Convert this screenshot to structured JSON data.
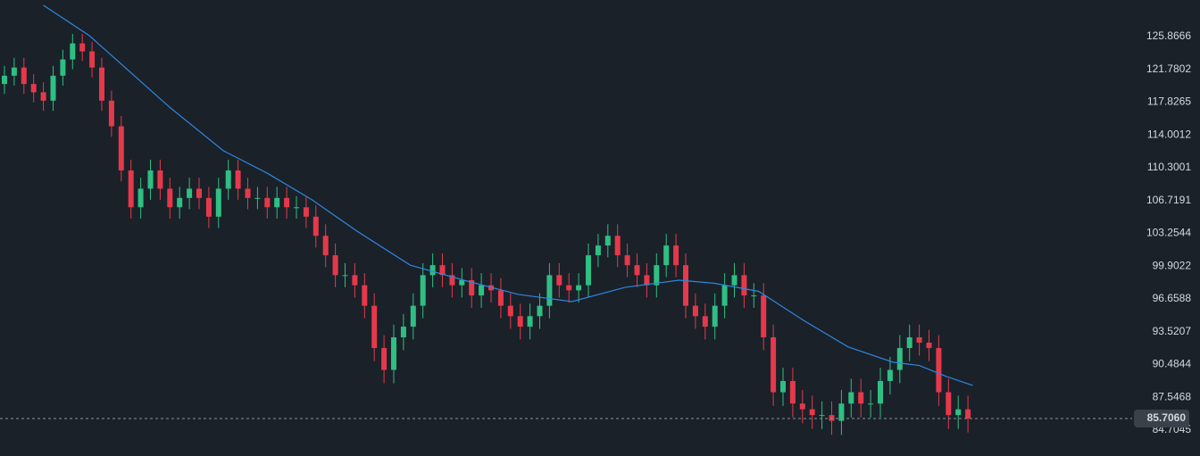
{
  "chart_data": {
    "type": "candlestick",
    "log_scale": true,
    "ylim": [
      82.53,
      130.58
    ],
    "yticks": [
      125.8666,
      121.7802,
      117.8265,
      114.0012,
      110.3001,
      106.7191,
      103.2544,
      99.9022,
      96.6588,
      93.5207,
      90.4844,
      87.5468,
      84.7045
    ],
    "up_color": "#2fbf83",
    "down_color": "#e5394b",
    "open": [
      120,
      121,
      122,
      120,
      119,
      118,
      121,
      123,
      125,
      124,
      122,
      118,
      115,
      110,
      106,
      108,
      110,
      108,
      106,
      107,
      108,
      107,
      105,
      108,
      110,
      108,
      107,
      107,
      106,
      107,
      106,
      106,
      105,
      103,
      101,
      99,
      99,
      98,
      96,
      92,
      90,
      93,
      94,
      96,
      99,
      100,
      99,
      98,
      98.5,
      97,
      98,
      97.5,
      96,
      95,
      94,
      95,
      96,
      99,
      98,
      97.5,
      98,
      101,
      102,
      103,
      101,
      100,
      99,
      98,
      100,
      102,
      100,
      96,
      95,
      94,
      96,
      98,
      99,
      97,
      97,
      93,
      88,
      89,
      87,
      86.5,
      86,
      86,
      85.5,
      87,
      88,
      87,
      87,
      89,
      90,
      92,
      93,
      92.5,
      92,
      88,
      86,
      86.5
    ],
    "high": [
      122.2,
      123.2,
      123.2,
      121.2,
      120.2,
      122.2,
      124.2,
      126.2,
      126.2,
      125.2,
      123.2,
      119.2,
      116.2,
      111.2,
      109.2,
      111.2,
      111.2,
      109.2,
      108.2,
      109.2,
      109.2,
      108.2,
      109.2,
      111.2,
      111.2,
      109.2,
      108.2,
      108.2,
      108.2,
      108.2,
      107.2,
      107.2,
      106.2,
      104.2,
      102.2,
      100.2,
      100.2,
      99.2,
      97.2,
      93.2,
      94.2,
      95.2,
      97.2,
      100.2,
      101.2,
      101.2,
      100.2,
      99.7,
      99.7,
      99.2,
      99.2,
      98.7,
      97.2,
      96.2,
      96.2,
      97.2,
      100.2,
      100.2,
      99.2,
      99.2,
      102.2,
      103.2,
      104.2,
      104.2,
      102.2,
      101.2,
      100.2,
      101.2,
      103.2,
      103.2,
      101.2,
      97.2,
      96.2,
      97.2,
      99.2,
      100.2,
      100.2,
      98.2,
      98.2,
      94.2,
      90.2,
      90.2,
      88.2,
      87.7,
      87.2,
      87.2,
      88.2,
      89.2,
      89.2,
      88.2,
      90.2,
      91.2,
      93.2,
      94.2,
      94.2,
      93.7,
      93.2,
      89.2,
      87.7,
      87.7
    ],
    "low": [
      118.8,
      119.8,
      118.8,
      117.8,
      116.8,
      116.8,
      119.8,
      121.8,
      122.8,
      120.8,
      116.8,
      113.8,
      108.8,
      104.8,
      104.8,
      106.8,
      106.8,
      104.8,
      104.8,
      105.8,
      105.8,
      103.8,
      103.8,
      106.8,
      106.8,
      105.8,
      105.8,
      104.8,
      104.8,
      104.8,
      104.8,
      103.8,
      101.8,
      99.8,
      97.8,
      97.8,
      96.8,
      94.8,
      90.8,
      88.8,
      88.8,
      91.8,
      92.8,
      94.8,
      97.8,
      97.8,
      96.8,
      96.8,
      95.8,
      95.8,
      96.3,
      94.8,
      93.8,
      92.8,
      92.8,
      93.8,
      94.8,
      96.8,
      96.3,
      96.3,
      96.8,
      99.8,
      100.8,
      99.8,
      98.8,
      97.8,
      96.8,
      96.8,
      98.8,
      98.8,
      94.8,
      93.8,
      92.8,
      92.8,
      94.8,
      96.8,
      95.8,
      95.8,
      91.8,
      86.8,
      86.8,
      85.8,
      85.3,
      84.8,
      84.8,
      84.3,
      84.3,
      85.8,
      85.8,
      85.8,
      85.8,
      87.8,
      88.8,
      90.8,
      91.3,
      90.8,
      86.8,
      84.8,
      84.8,
      84.5
    ],
    "close": [
      121,
      122,
      120,
      119,
      118,
      121,
      123,
      125,
      124,
      122,
      118,
      115,
      110,
      106,
      108,
      110,
      108,
      106,
      107,
      108,
      107,
      105,
      108,
      110,
      108,
      107,
      107,
      106,
      107,
      106,
      106,
      105,
      103,
      101,
      99,
      99,
      98,
      96,
      92,
      90,
      93,
      94,
      96,
      99,
      100,
      99,
      98,
      98.5,
      97,
      98,
      97.5,
      96,
      95,
      94,
      95,
      96,
      99,
      98,
      97.5,
      98,
      101,
      102,
      103,
      101,
      100,
      99,
      98,
      100,
      102,
      100,
      96,
      95,
      94,
      96,
      98,
      99,
      97,
      97,
      93,
      88,
      89,
      87,
      86.5,
      86,
      86,
      85.5,
      87,
      88,
      87,
      87,
      89,
      90,
      92,
      93,
      92.5,
      92,
      88,
      86,
      86.5,
      85.706
    ],
    "ma": {
      "color": "#2f86e0",
      "x": [
        4,
        8.7,
        17,
        22.5,
        27,
        31.6,
        36.2,
        41.7,
        47.2,
        52.8,
        58.3,
        63.8,
        69.3,
        72.9,
        77.5,
        82.1,
        86.7,
        91.3,
        94,
        96.8,
        99.5
      ],
      "values": [
        129.9,
        126,
        117.2,
        112.2,
        109.7,
        106.8,
        103.5,
        100.0,
        98.5,
        97.1,
        96.4,
        97.8,
        98.5,
        98.2,
        97.4,
        94.6,
        92.1,
        90.7,
        90.4,
        89.4,
        88.6
      ]
    },
    "last_price": {
      "value": 85.706,
      "label": "85.7060"
    }
  }
}
